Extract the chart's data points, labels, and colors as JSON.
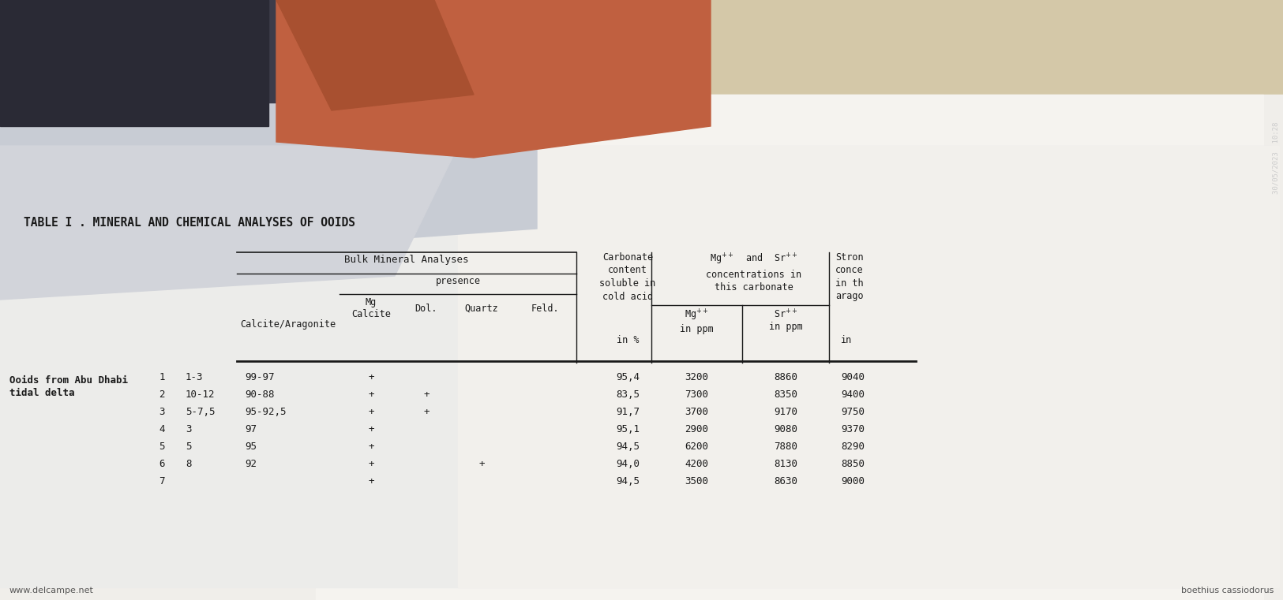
{
  "title": "TABLE I . MINERAL AND CHEMICAL ANALYSES OF OOIDS",
  "text_color": "#1a1a1a",
  "watermark_bottom_left": "www.delcampe.net",
  "watermark_bottom_right": "boethius cassiodorus",
  "date_text": "30/05/2023  10:28",
  "section_label_line1": "Ooids from Abu Dhabi",
  "section_label_line2": "tidal delta",
  "rows": [
    [
      "1",
      "1-3",
      "99-97",
      "+",
      "",
      "",
      "95,4",
      "3200",
      "8860",
      "9040"
    ],
    [
      "2",
      "10-12",
      "90-88",
      "+",
      "+",
      "",
      "83,5",
      "7300",
      "8350",
      "9400"
    ],
    [
      "3",
      "5-7,5",
      "95-92,5",
      "+",
      "+",
      "",
      "91,7",
      "3700",
      "9170",
      "9750"
    ],
    [
      "4",
      "3",
      "97",
      "+",
      "",
      "",
      "95,1",
      "2900",
      "9080",
      "9370"
    ],
    [
      "5",
      "5",
      "95",
      "+",
      "",
      "",
      "94,5",
      "6200",
      "7880",
      "8290"
    ],
    [
      "6",
      "8",
      "92",
      "+",
      "",
      "+",
      "94,0",
      "4200",
      "8130",
      "8850"
    ],
    [
      "7",
      "",
      "",
      "+",
      "",
      "",
      "94,5",
      "3500",
      "8630",
      "9000"
    ]
  ],
  "bg_wall_color": "#c8b898",
  "bg_paper_color": "#e8e6e2",
  "bg_shadow_color": "#b0aeb0",
  "hand_dark": "#5a3520",
  "hand_light": "#c87050"
}
